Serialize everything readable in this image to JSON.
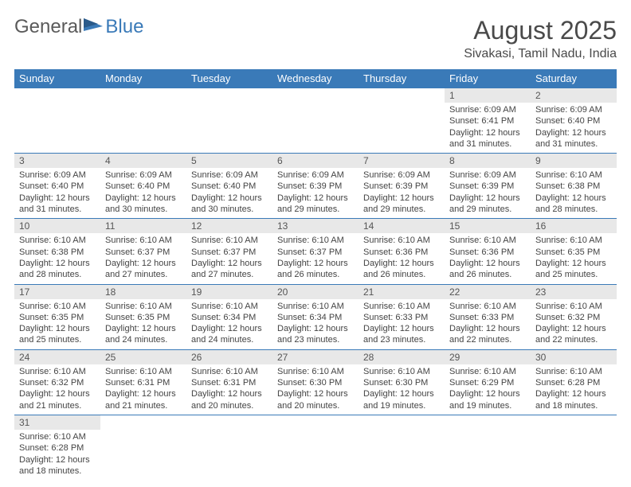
{
  "logo": {
    "part1": "General",
    "part2": "Blue"
  },
  "title": "August 2025",
  "location": "Sivakasi, Tamil Nadu, India",
  "weekdays": [
    "Sunday",
    "Monday",
    "Tuesday",
    "Wednesday",
    "Thursday",
    "Friday",
    "Saturday"
  ],
  "colors": {
    "header_bg": "#3a7ab8",
    "header_text": "#ffffff",
    "daynum_bg": "#e8e8e8",
    "border": "#3a7ab8",
    "text": "#444444",
    "title_text": "#4a4a4a",
    "logo_gray": "#5a5a5a",
    "logo_blue": "#3a7ab8"
  },
  "typography": {
    "title_fontsize": 32,
    "location_fontsize": 16,
    "weekday_fontsize": 13,
    "daynum_fontsize": 12,
    "body_fontsize": 11,
    "logo_fontsize": 24
  },
  "layout": {
    "columns": 7,
    "rows": 6,
    "first_weekday_index": 5
  },
  "days": [
    {
      "n": "1",
      "sunrise": "6:09 AM",
      "sunset": "6:41 PM",
      "daylight": "12 hours and 31 minutes."
    },
    {
      "n": "2",
      "sunrise": "6:09 AM",
      "sunset": "6:40 PM",
      "daylight": "12 hours and 31 minutes."
    },
    {
      "n": "3",
      "sunrise": "6:09 AM",
      "sunset": "6:40 PM",
      "daylight": "12 hours and 31 minutes."
    },
    {
      "n": "4",
      "sunrise": "6:09 AM",
      "sunset": "6:40 PM",
      "daylight": "12 hours and 30 minutes."
    },
    {
      "n": "5",
      "sunrise": "6:09 AM",
      "sunset": "6:40 PM",
      "daylight": "12 hours and 30 minutes."
    },
    {
      "n": "6",
      "sunrise": "6:09 AM",
      "sunset": "6:39 PM",
      "daylight": "12 hours and 29 minutes."
    },
    {
      "n": "7",
      "sunrise": "6:09 AM",
      "sunset": "6:39 PM",
      "daylight": "12 hours and 29 minutes."
    },
    {
      "n": "8",
      "sunrise": "6:09 AM",
      "sunset": "6:39 PM",
      "daylight": "12 hours and 29 minutes."
    },
    {
      "n": "9",
      "sunrise": "6:10 AM",
      "sunset": "6:38 PM",
      "daylight": "12 hours and 28 minutes."
    },
    {
      "n": "10",
      "sunrise": "6:10 AM",
      "sunset": "6:38 PM",
      "daylight": "12 hours and 28 minutes."
    },
    {
      "n": "11",
      "sunrise": "6:10 AM",
      "sunset": "6:37 PM",
      "daylight": "12 hours and 27 minutes."
    },
    {
      "n": "12",
      "sunrise": "6:10 AM",
      "sunset": "6:37 PM",
      "daylight": "12 hours and 27 minutes."
    },
    {
      "n": "13",
      "sunrise": "6:10 AM",
      "sunset": "6:37 PM",
      "daylight": "12 hours and 26 minutes."
    },
    {
      "n": "14",
      "sunrise": "6:10 AM",
      "sunset": "6:36 PM",
      "daylight": "12 hours and 26 minutes."
    },
    {
      "n": "15",
      "sunrise": "6:10 AM",
      "sunset": "6:36 PM",
      "daylight": "12 hours and 26 minutes."
    },
    {
      "n": "16",
      "sunrise": "6:10 AM",
      "sunset": "6:35 PM",
      "daylight": "12 hours and 25 minutes."
    },
    {
      "n": "17",
      "sunrise": "6:10 AM",
      "sunset": "6:35 PM",
      "daylight": "12 hours and 25 minutes."
    },
    {
      "n": "18",
      "sunrise": "6:10 AM",
      "sunset": "6:35 PM",
      "daylight": "12 hours and 24 minutes."
    },
    {
      "n": "19",
      "sunrise": "6:10 AM",
      "sunset": "6:34 PM",
      "daylight": "12 hours and 24 minutes."
    },
    {
      "n": "20",
      "sunrise": "6:10 AM",
      "sunset": "6:34 PM",
      "daylight": "12 hours and 23 minutes."
    },
    {
      "n": "21",
      "sunrise": "6:10 AM",
      "sunset": "6:33 PM",
      "daylight": "12 hours and 23 minutes."
    },
    {
      "n": "22",
      "sunrise": "6:10 AM",
      "sunset": "6:33 PM",
      "daylight": "12 hours and 22 minutes."
    },
    {
      "n": "23",
      "sunrise": "6:10 AM",
      "sunset": "6:32 PM",
      "daylight": "12 hours and 22 minutes."
    },
    {
      "n": "24",
      "sunrise": "6:10 AM",
      "sunset": "6:32 PM",
      "daylight": "12 hours and 21 minutes."
    },
    {
      "n": "25",
      "sunrise": "6:10 AM",
      "sunset": "6:31 PM",
      "daylight": "12 hours and 21 minutes."
    },
    {
      "n": "26",
      "sunrise": "6:10 AM",
      "sunset": "6:31 PM",
      "daylight": "12 hours and 20 minutes."
    },
    {
      "n": "27",
      "sunrise": "6:10 AM",
      "sunset": "6:30 PM",
      "daylight": "12 hours and 20 minutes."
    },
    {
      "n": "28",
      "sunrise": "6:10 AM",
      "sunset": "6:30 PM",
      "daylight": "12 hours and 19 minutes."
    },
    {
      "n": "29",
      "sunrise": "6:10 AM",
      "sunset": "6:29 PM",
      "daylight": "12 hours and 19 minutes."
    },
    {
      "n": "30",
      "sunrise": "6:10 AM",
      "sunset": "6:28 PM",
      "daylight": "12 hours and 18 minutes."
    },
    {
      "n": "31",
      "sunrise": "6:10 AM",
      "sunset": "6:28 PM",
      "daylight": "12 hours and 18 minutes."
    }
  ],
  "labels": {
    "sunrise": "Sunrise:",
    "sunset": "Sunset:",
    "daylight": "Daylight:"
  }
}
